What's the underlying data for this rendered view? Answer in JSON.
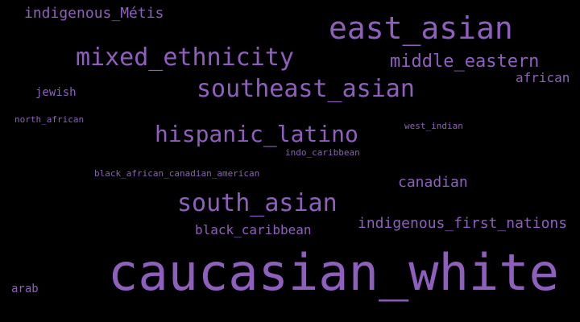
{
  "colors": {
    "background": "#000000",
    "word": "#8f5fbe",
    "word_dim": "#8a62b6"
  },
  "words": [
    {
      "text": "caucasian_white",
      "emphasis": "largest"
    },
    {
      "text": "east_asian"
    },
    {
      "text": "mixed_ethnicity"
    },
    {
      "text": "southeast_asian"
    },
    {
      "text": "hispanic_latino"
    },
    {
      "text": "south_asian"
    },
    {
      "text": "middle_eastern"
    },
    {
      "text": "indigenous_Métis"
    },
    {
      "text": "indigenous_first_nations"
    },
    {
      "text": "canadian"
    },
    {
      "text": "black_caribbean"
    },
    {
      "text": "african"
    },
    {
      "text": "jewish"
    },
    {
      "text": "arab"
    },
    {
      "text": "west_indian"
    },
    {
      "text": "indo_caribbean"
    },
    {
      "text": "black_african_canadian_american"
    },
    {
      "text": "north_african"
    }
  ]
}
